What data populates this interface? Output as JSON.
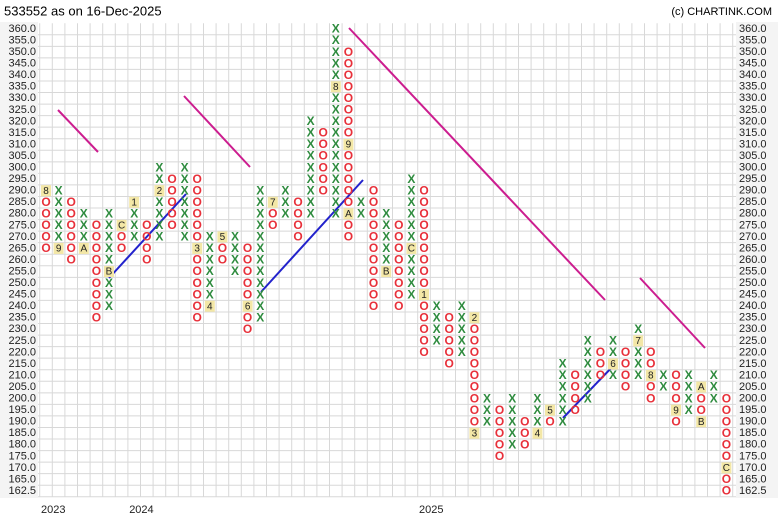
{
  "chart_data": {
    "type": "pnf",
    "title": "533552 as on 16-Dec-2025",
    "source": "(c) CHARTINK.COM",
    "ylim": [
      162.5,
      360
    ],
    "yticks": [
      360.0,
      355.0,
      350.0,
      345.0,
      340.0,
      335.0,
      330.0,
      325.0,
      320.0,
      315.0,
      310.0,
      305.0,
      300.0,
      295.0,
      290.0,
      285.0,
      280.0,
      275.0,
      270.0,
      265.0,
      260.0,
      255.0,
      250.0,
      245.0,
      240.0,
      235.0,
      230.0,
      225.0,
      220.0,
      215.0,
      210.0,
      205.0,
      200.0,
      195.0,
      190.0,
      185.0,
      180.0,
      175.0,
      170.0,
      165.0,
      162.5
    ],
    "ytick_labels": [
      "360.0",
      "355.0",
      "350.0",
      "345.0",
      "340.0",
      "335.0",
      "330.0",
      "325.0",
      "320.0",
      "315.0",
      "310.0",
      "305.0",
      "300.0",
      "295.0",
      "290.0",
      "285.0",
      "280.0",
      "275.0",
      "270.0",
      "265.0",
      "260.0",
      "255.0",
      "250.0",
      "245.0",
      "240.0",
      "235.0",
      "230.0",
      "225.0",
      "220.0",
      "215.0",
      "210.0",
      "205.0",
      "200.0",
      "195.0",
      "190.0",
      "185.0",
      "180.0",
      "175.0",
      "170.0",
      "165.0",
      "162.5"
    ],
    "grid": true,
    "x_color": "#2e8b3e",
    "o_color": "#e8303a",
    "marker_color": "#f3e7a6",
    "columns": [
      {
        "type": "O",
        "low": 265,
        "high": 290,
        "months": [
          {
            "price": 290,
            "label": "8"
          }
        ],
        "year": "2023"
      },
      {
        "type": "X",
        "low": 265,
        "high": 290,
        "months": [
          {
            "price": 265,
            "label": "9"
          }
        ]
      },
      {
        "type": "O",
        "low": 260,
        "high": 285,
        "months": []
      },
      {
        "type": "X",
        "low": 265,
        "high": 280,
        "months": [
          {
            "price": 265,
            "label": "A"
          }
        ]
      },
      {
        "type": "O",
        "low": 235,
        "high": 275,
        "months": []
      },
      {
        "type": "X",
        "low": 240,
        "high": 280,
        "months": [
          {
            "price": 255,
            "label": "B"
          }
        ]
      },
      {
        "type": "O",
        "low": 265,
        "high": 275,
        "months": [
          {
            "price": 275,
            "label": "C"
          }
        ]
      },
      {
        "type": "X",
        "low": 270,
        "high": 285,
        "months": [
          {
            "price": 285,
            "label": "1"
          }
        ],
        "year": "2024"
      },
      {
        "type": "O",
        "low": 260,
        "high": 275,
        "months": []
      },
      {
        "type": "X",
        "low": 270,
        "high": 300,
        "months": [
          {
            "price": 290,
            "label": "2"
          }
        ]
      },
      {
        "type": "O",
        "low": 275,
        "high": 295,
        "months": []
      },
      {
        "type": "X",
        "low": 270,
        "high": 300,
        "months": []
      },
      {
        "type": "O",
        "low": 235,
        "high": 295,
        "months": [
          {
            "price": 265,
            "label": "3"
          }
        ]
      },
      {
        "type": "X",
        "low": 240,
        "high": 270,
        "months": [
          {
            "price": 240,
            "label": "4"
          }
        ]
      },
      {
        "type": "O",
        "low": 260,
        "high": 270,
        "months": [
          {
            "price": 270,
            "label": "5"
          }
        ]
      },
      {
        "type": "X",
        "low": 255,
        "high": 270,
        "months": []
      },
      {
        "type": "O",
        "low": 230,
        "high": 265,
        "months": [
          {
            "price": 240,
            "label": "6"
          }
        ]
      },
      {
        "type": "X",
        "low": 235,
        "high": 290,
        "months": []
      },
      {
        "type": "O",
        "low": 275,
        "high": 285,
        "months": [
          {
            "price": 285,
            "label": "7"
          }
        ]
      },
      {
        "type": "X",
        "low": 280,
        "high": 290,
        "months": []
      },
      {
        "type": "O",
        "low": 270,
        "high": 285,
        "months": []
      },
      {
        "type": "X",
        "low": 280,
        "high": 320,
        "months": []
      },
      {
        "type": "O",
        "low": 290,
        "high": 315,
        "months": []
      },
      {
        "type": "X",
        "low": 280,
        "high": 360,
        "months": [
          {
            "price": 335,
            "label": "8"
          }
        ]
      },
      {
        "type": "O",
        "low": 270,
        "high": 350,
        "months": [
          {
            "price": 310,
            "label": "9"
          },
          {
            "price": 280,
            "label": "A"
          }
        ]
      },
      {
        "type": "X",
        "low": 280,
        "high": 285,
        "months": []
      },
      {
        "type": "O",
        "low": 240,
        "high": 290,
        "months": []
      },
      {
        "type": "X",
        "low": 255,
        "high": 280,
        "months": [
          {
            "price": 255,
            "label": "B"
          }
        ]
      },
      {
        "type": "O",
        "low": 240,
        "high": 275,
        "months": []
      },
      {
        "type": "X",
        "low": 245,
        "high": 295,
        "months": [
          {
            "price": 265,
            "label": "C"
          }
        ]
      },
      {
        "type": "O",
        "low": 220,
        "high": 290,
        "months": [
          {
            "price": 245,
            "label": "1"
          }
        ],
        "year": "2025"
      },
      {
        "type": "X",
        "low": 225,
        "high": 240,
        "months": []
      },
      {
        "type": "O",
        "low": 215,
        "high": 235,
        "months": []
      },
      {
        "type": "X",
        "low": 220,
        "high": 240,
        "months": []
      },
      {
        "type": "O",
        "low": 185,
        "high": 235,
        "months": [
          {
            "price": 235,
            "label": "2"
          },
          {
            "price": 185,
            "label": "3"
          }
        ]
      },
      {
        "type": "X",
        "low": 190,
        "high": 200,
        "months": []
      },
      {
        "type": "O",
        "low": 175,
        "high": 195,
        "months": []
      },
      {
        "type": "X",
        "low": 180,
        "high": 200,
        "months": []
      },
      {
        "type": "O",
        "low": 180,
        "high": 190,
        "months": []
      },
      {
        "type": "X",
        "low": 185,
        "high": 200,
        "months": [
          {
            "price": 185,
            "label": "4"
          }
        ]
      },
      {
        "type": "O",
        "low": 190,
        "high": 195,
        "months": [
          {
            "price": 195,
            "label": "5"
          }
        ]
      },
      {
        "type": "X",
        "low": 190,
        "high": 215,
        "months": []
      },
      {
        "type": "O",
        "low": 195,
        "high": 210,
        "months": []
      },
      {
        "type": "X",
        "low": 200,
        "high": 225,
        "months": []
      },
      {
        "type": "O",
        "low": 210,
        "high": 220,
        "months": []
      },
      {
        "type": "X",
        "low": 210,
        "high": 225,
        "months": [
          {
            "price": 215,
            "label": "6"
          }
        ]
      },
      {
        "type": "O",
        "low": 205,
        "high": 220,
        "months": []
      },
      {
        "type": "X",
        "low": 210,
        "high": 230,
        "months": [
          {
            "price": 225,
            "label": "7"
          }
        ]
      },
      {
        "type": "O",
        "low": 200,
        "high": 220,
        "months": [
          {
            "price": 210,
            "label": "8"
          }
        ]
      },
      {
        "type": "X",
        "low": 205,
        "high": 210,
        "months": []
      },
      {
        "type": "O",
        "low": 190,
        "high": 210,
        "months": [
          {
            "price": 195,
            "label": "9"
          }
        ]
      },
      {
        "type": "X",
        "low": 195,
        "high": 210,
        "months": []
      },
      {
        "type": "O",
        "low": 190,
        "high": 205,
        "months": [
          {
            "price": 205,
            "label": "A"
          },
          {
            "price": 190,
            "label": "B"
          }
        ]
      },
      {
        "type": "X",
        "low": 200,
        "high": 210,
        "months": []
      },
      {
        "type": "O",
        "low": 162.5,
        "high": 200,
        "months": [
          {
            "price": 170,
            "label": "C"
          }
        ]
      }
    ]
  }
}
